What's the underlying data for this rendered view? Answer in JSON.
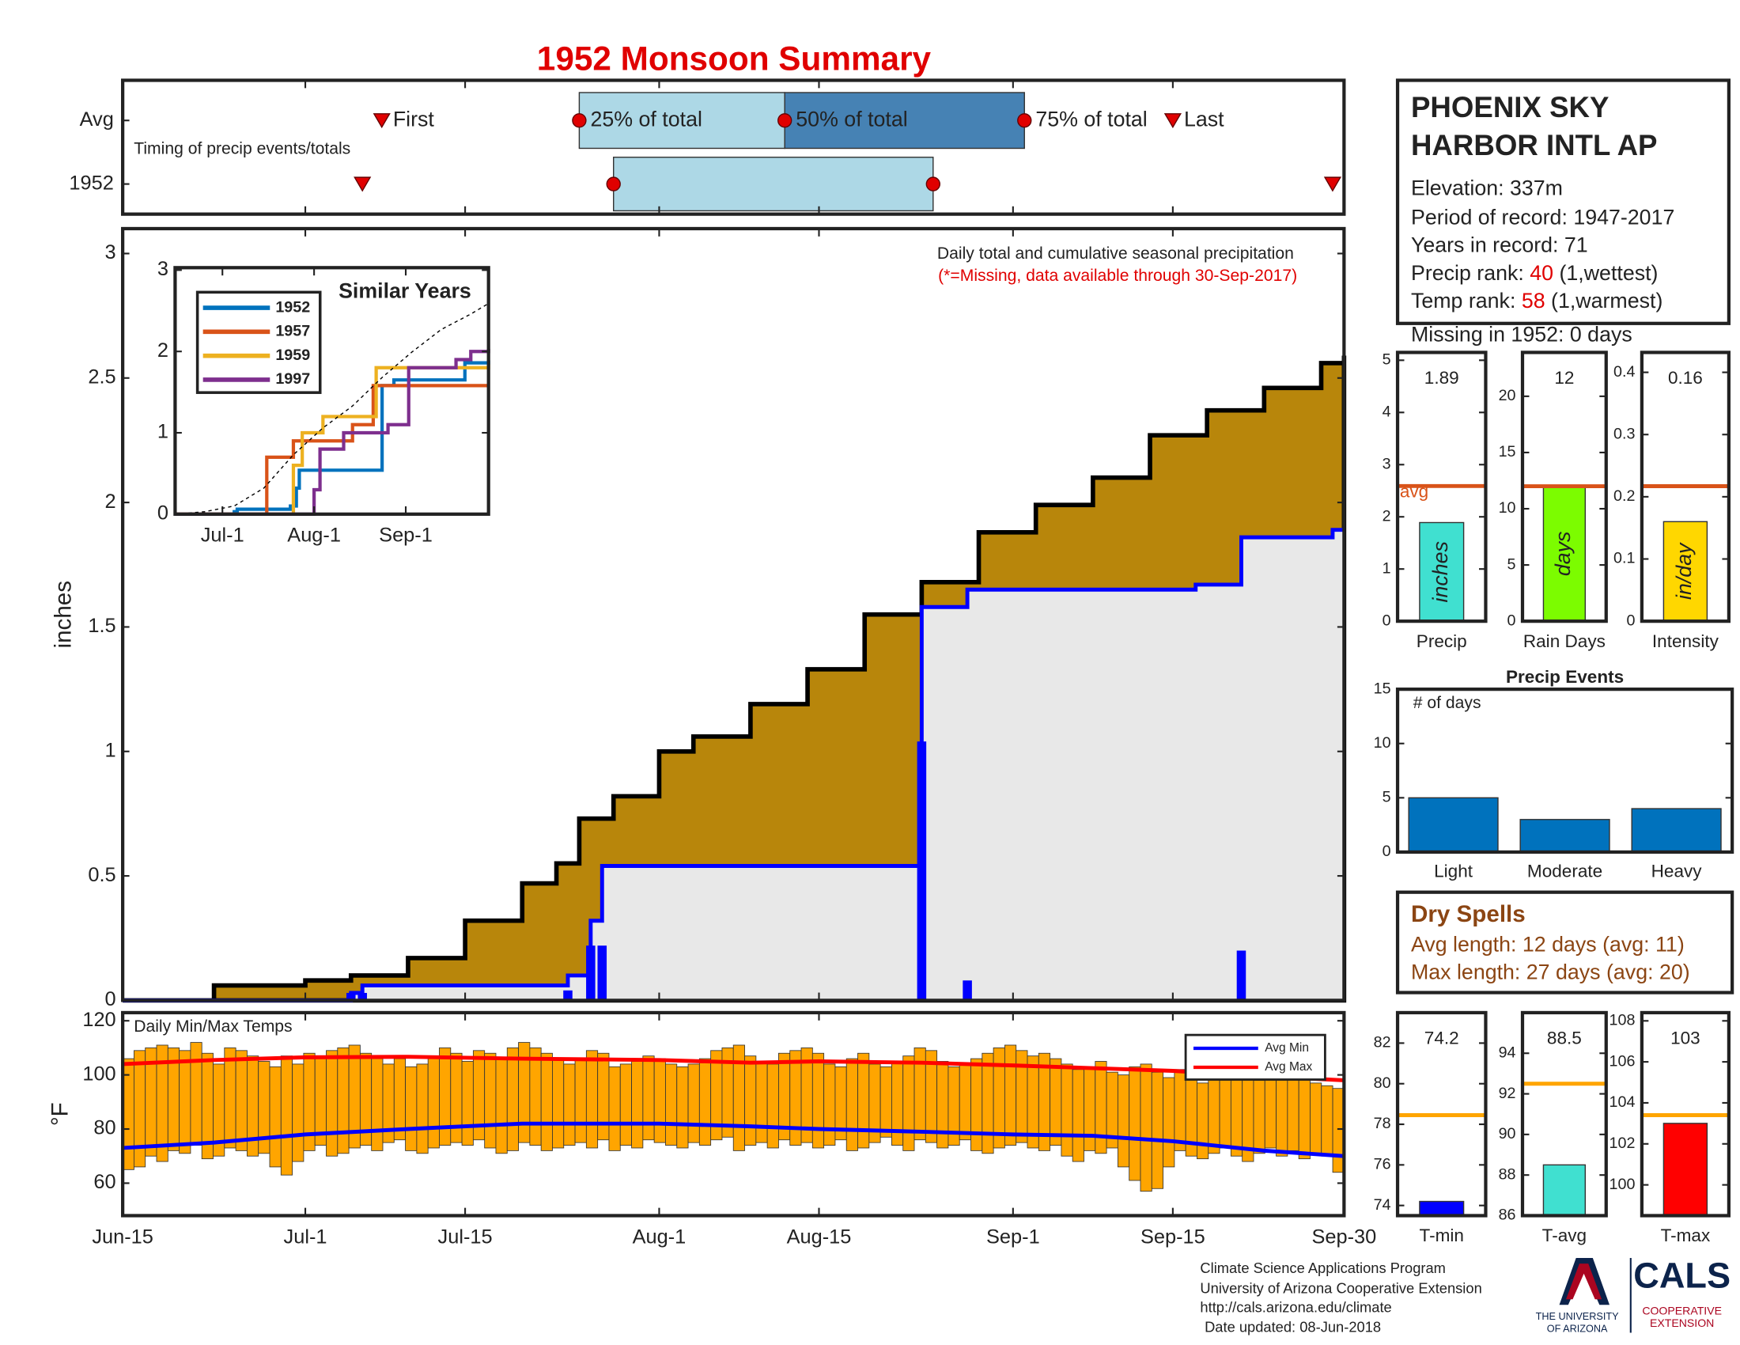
{
  "title": "1952 Monsoon Summary",
  "chart_data": [
    {
      "type": "timing",
      "rows": [
        "Avg",
        "1952"
      ],
      "note": "Timing of precip events/totals",
      "xlim": [
        0,
        107
      ],
      "xticks": [
        0,
        16,
        30,
        47,
        61,
        78,
        92,
        107
      ],
      "avg": {
        "first": 22.7,
        "p25": 40,
        "p50": 58,
        "p75": 79,
        "last": 92
      },
      "year": {
        "first": 21,
        "p25": 43,
        "p75": 71,
        "last": 106
      },
      "labels": {
        "first": "First",
        "p25": "25% of total",
        "p50": "50% of total",
        "p75": "75% of total",
        "last": "Last"
      },
      "colors": {
        "light": "#add8e6",
        "dark": "#4682b4",
        "marker": "#e00000"
      }
    },
    {
      "type": "precip",
      "ylabel": "inches",
      "note": "Daily total and cumulative seasonal precipitation",
      "note2": "(*=Missing, data available through 30-Sep-2017)",
      "xlim": [
        0,
        107
      ],
      "xticks": [
        0,
        16,
        30,
        47,
        61,
        78,
        92,
        107
      ],
      "ylim": [
        0,
        3.1
      ],
      "yticks": [
        0,
        0.5,
        1,
        1.5,
        2,
        2.5,
        3
      ],
      "series": [
        {
          "style": "area",
          "color": "#b8860b",
          "x": [
            0,
            8,
            16,
            20,
            25,
            30,
            35,
            38,
            40,
            43,
            47,
            50,
            55,
            60,
            65,
            70,
            75,
            80,
            85,
            90,
            95,
            100,
            105,
            107
          ],
          "values": [
            0,
            0.06,
            0.08,
            0.1,
            0.17,
            0.32,
            0.47,
            0.55,
            0.73,
            0.82,
            1.0,
            1.06,
            1.19,
            1.33,
            1.55,
            1.68,
            1.88,
            1.99,
            2.1,
            2.27,
            2.37,
            2.46,
            2.56,
            2.59
          ]
        },
        {
          "style": "step",
          "color": "#0000ff",
          "x": [
            0,
            20,
            21,
            39,
            41,
            42,
            70,
            74,
            94,
            98,
            106
          ],
          "values": [
            0,
            0.03,
            0.06,
            0.1,
            0.32,
            0.54,
            1.58,
            1.65,
            1.67,
            1.86,
            1.89
          ]
        },
        {
          "style": "bars",
          "color": "#0000ff",
          "x": [
            20,
            21,
            39,
            41,
            42,
            70,
            74,
            98
          ],
          "values": [
            0.03,
            0.03,
            0.04,
            0.22,
            0.22,
            1.04,
            0.08,
            0.2
          ]
        }
      ]
    },
    {
      "type": "similar",
      "title": "Similar Years",
      "xlim": [
        0,
        106
      ],
      "xticks": [
        {
          "value": 16,
          "label": "Jul-1"
        },
        {
          "value": 47,
          "label": "Aug-1"
        },
        {
          "value": 78,
          "label": "Sep-1"
        }
      ],
      "ylim": [
        0,
        3.03
      ],
      "yticks": [
        0,
        1,
        2,
        3
      ],
      "series": [
        {
          "name": "1952",
          "color": "#0072bd",
          "x": [
            0,
            20,
            21,
            39,
            41,
            42,
            70,
            74,
            98,
            106
          ],
          "values": [
            0,
            0.03,
            0.06,
            0.1,
            0.32,
            0.54,
            1.58,
            1.65,
            1.86,
            1.89
          ]
        },
        {
          "name": "1957",
          "color": "#d95319",
          "x": [
            0,
            31,
            40,
            60,
            67,
            106
          ],
          "values": [
            0,
            0.7,
            0.9,
            1.1,
            1.58,
            1.58
          ]
        },
        {
          "name": "1959",
          "color": "#edb120",
          "x": [
            0,
            40,
            43,
            50,
            68,
            106
          ],
          "values": [
            0,
            0.6,
            1.0,
            1.2,
            1.8,
            1.84
          ]
        },
        {
          "name": "1997",
          "color": "#7e2f8e",
          "x": [
            0,
            47,
            49,
            57,
            72,
            79,
            95,
            100,
            106
          ],
          "values": [
            0,
            0.3,
            0.8,
            1.0,
            1.1,
            1.8,
            1.9,
            2.0,
            2.03
          ]
        },
        {
          "dash": true,
          "color": "#000000",
          "x": [
            0,
            10,
            20,
            30,
            40,
            50,
            60,
            70,
            80,
            90,
            100,
            106
          ],
          "values": [
            0,
            0.03,
            0.1,
            0.32,
            0.73,
            1.06,
            1.33,
            1.68,
            1.99,
            2.27,
            2.46,
            2.59
          ]
        }
      ]
    },
    {
      "type": "temps",
      "title": "Daily Min/Max Temps",
      "ylabel": "°F",
      "color": "#ffa500",
      "xlim": [
        0,
        107
      ],
      "xticks": [
        {
          "value": 0,
          "label": "Jun-15"
        },
        {
          "value": 16,
          "label": "Jul-1"
        },
        {
          "value": 30,
          "label": "Jul-15"
        },
        {
          "value": 47,
          "label": "Aug-1"
        },
        {
          "value": 61,
          "label": "Aug-15"
        },
        {
          "value": 78,
          "label": "Sep-1"
        },
        {
          "value": 92,
          "label": "Sep-15"
        },
        {
          "value": 107,
          "label": "Sep-30"
        }
      ],
      "ylim": [
        48,
        123
      ],
      "yticks": [
        60,
        80,
        100,
        120
      ],
      "max": [
        106,
        109,
        110,
        111,
        110,
        109,
        112,
        108,
        104,
        110,
        109,
        107,
        105,
        103,
        107,
        104,
        108,
        107,
        109,
        110,
        111,
        108,
        106,
        104,
        106,
        103,
        104,
        107,
        110,
        108,
        105,
        109,
        108,
        106,
        110,
        112,
        110,
        108,
        106,
        104,
        106,
        109,
        108,
        103,
        104,
        105,
        107,
        106,
        104,
        103,
        104,
        106,
        109,
        110,
        111,
        107,
        105,
        104,
        108,
        109,
        110,
        108,
        104,
        103,
        106,
        108,
        104,
        103,
        105,
        107,
        110,
        109,
        105,
        103,
        104,
        106,
        108,
        110,
        111,
        109,
        107,
        108,
        106,
        104,
        102,
        103,
        105,
        101,
        100,
        103,
        104,
        101,
        99,
        102,
        100,
        97,
        99,
        101,
        103,
        100,
        98,
        99,
        100,
        101,
        99,
        97,
        96,
        95
      ],
      "min": [
        65,
        66,
        70,
        68,
        72,
        71,
        74,
        69,
        70,
        73,
        72,
        70,
        71,
        66,
        63,
        68,
        72,
        74,
        70,
        71,
        73,
        74,
        72,
        75,
        76,
        72,
        71,
        73,
        74,
        75,
        74,
        76,
        73,
        71,
        72,
        75,
        74,
        72,
        73,
        74,
        75,
        73,
        76,
        72,
        74,
        73,
        76,
        75,
        74,
        73,
        75,
        74,
        76,
        77,
        72,
        74,
        75,
        73,
        76,
        74,
        75,
        73,
        74,
        76,
        72,
        73,
        75,
        77,
        74,
        72,
        76,
        75,
        73,
        74,
        76,
        72,
        71,
        73,
        74,
        75,
        73,
        72,
        74,
        70,
        68,
        72,
        71,
        73,
        66,
        61,
        57,
        58,
        66,
        72,
        70,
        69,
        71,
        73,
        70,
        68,
        71,
        73,
        70,
        72,
        69,
        71,
        70,
        64
      ],
      "series": [
        {
          "name": "Avg Min",
          "color": "#0000ff",
          "x": [
            0,
            8,
            16,
            25,
            35,
            47,
            55,
            61,
            70,
            78,
            85,
            92,
            100,
            107
          ],
          "values": [
            73,
            75,
            78,
            80,
            82,
            82,
            81,
            80,
            79,
            78,
            77.5,
            75.5,
            72,
            70
          ]
        },
        {
          "name": "Avg Max",
          "color": "#ff0000",
          "x": [
            0,
            8,
            16,
            25,
            35,
            47,
            55,
            61,
            70,
            78,
            85,
            92,
            100,
            107
          ],
          "values": [
            104,
            105.5,
            106.5,
            106.7,
            106,
            105.5,
            104.5,
            105,
            104.5,
            103.5,
            102.5,
            101.5,
            99.5,
            98
          ]
        }
      ]
    },
    {
      "type": "mini-bar",
      "label": "Precip",
      "value": 1.89,
      "unit": "inches",
      "color": "#40e0d0",
      "avg": 2.59,
      "avg_color": "#d95319",
      "avg_label": "avg",
      "ylim": [
        0,
        5.15
      ],
      "yticks": [
        0,
        1,
        2,
        3,
        4,
        5
      ]
    },
    {
      "type": "mini-bar",
      "label": "Rain Days",
      "value": 12,
      "unit": "days",
      "color": "#7cfc00",
      "avg": 12,
      "avg_color": "#d95319",
      "ylim": [
        0,
        23.9
      ],
      "yticks": [
        0,
        5,
        10,
        15,
        20
      ]
    },
    {
      "type": "mini-bar",
      "label": "Intensity",
      "value": 0.16,
      "unit": "in/day",
      "color": "#ffd700",
      "avg": 0.217,
      "avg_color": "#d95319",
      "ylim": [
        0,
        0.432
      ],
      "yticks": [
        0,
        0.1,
        0.2,
        0.3,
        0.4
      ]
    },
    {
      "type": "bar",
      "title": "Precip Events",
      "note": "# of days",
      "categories": [
        "Light",
        "Moderate",
        "Heavy"
      ],
      "values": [
        5,
        3,
        4
      ],
      "color": "#0072bd",
      "ylim": [
        0,
        15
      ],
      "yticks": [
        0,
        5,
        10,
        15
      ]
    },
    {
      "type": "mini-bar",
      "label": "T-min",
      "value": 74.2,
      "color": "#0000ff",
      "avg": 78.45,
      "avg_color": "#ffa500",
      "ylim": [
        73.5,
        83.5
      ],
      "yticks": [
        74,
        76,
        78,
        80,
        82
      ]
    },
    {
      "type": "mini-bar",
      "label": "T-avg",
      "value": 88.5,
      "color": "#40e0d0",
      "avg": 92.5,
      "avg_color": "#ffa500",
      "ylim": [
        86,
        96
      ],
      "yticks": [
        86,
        88,
        90,
        92,
        94
      ]
    },
    {
      "type": "mini-bar",
      "label": "T-max",
      "value": 103,
      "color": "#ff0000",
      "avg": 103.4,
      "avg_color": "#ffa500",
      "ylim": [
        98.5,
        108.4
      ],
      "yticks": [
        100,
        102,
        104,
        106,
        108
      ]
    }
  ],
  "info": {
    "name1": "PHOENIX SKY",
    "name2": "HARBOR INTL AP",
    "elevation": "Elevation: 337m",
    "period": "Period of record: 1947-2017",
    "years": "Years in record: 71",
    "precip_rank_label": "Precip rank:",
    "precip_rank": 40,
    "precip_rank_note": "(1,wettest)",
    "temp_rank_label": "Temp rank:",
    "temp_rank": 58,
    "temp_rank_note": "(1,warmest)",
    "missing": "Missing in 1952: 0 days"
  },
  "dry_spells": {
    "title": "Dry Spells",
    "avg": "Avg length: 12 days (avg: 11)",
    "max": "Max length: 27 days (avg: 20)"
  },
  "footer": [
    "Climate Science Applications Program",
    "University of Arizona Cooperative Extension",
    "http://cals.arizona.edu/climate",
    "Date updated: 08-Jun-2018"
  ],
  "logos": {
    "ua1": "THE UNIVERSITY",
    "ua2": "OF ARIZONA",
    "cals": "CALS",
    "ext1": "COOPERATIVE",
    "ext2": "EXTENSION"
  }
}
